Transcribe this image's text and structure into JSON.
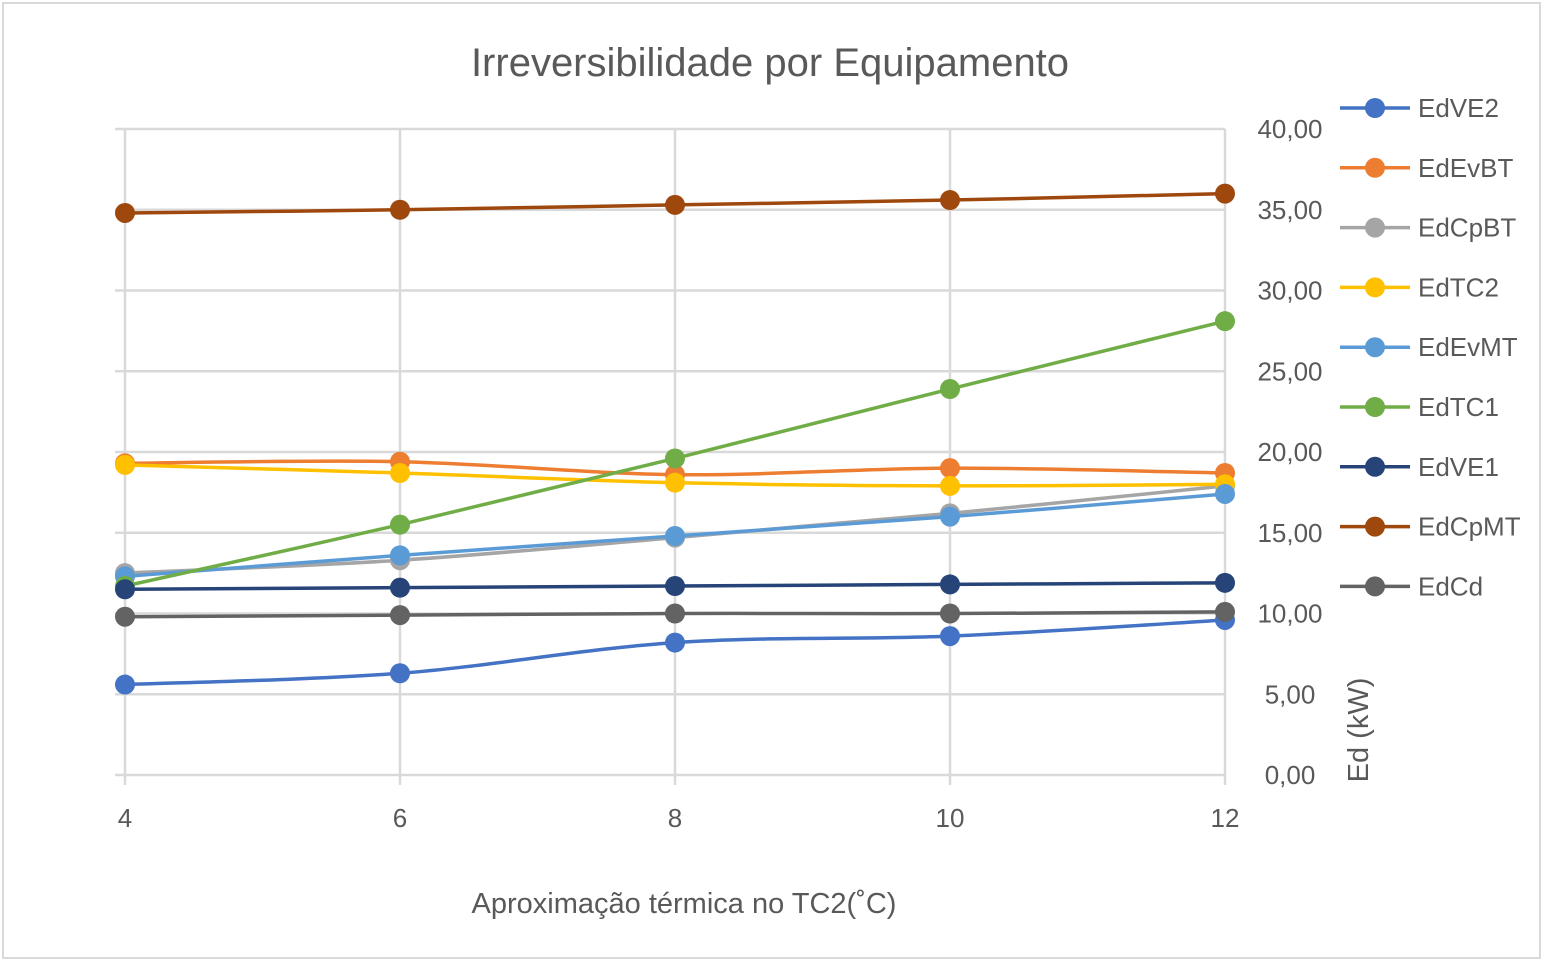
{
  "chart_data": {
    "type": "line",
    "title": "Irreversibilidade por Equipamento",
    "xlabel": "Aproximação térmica no TC2(˚C)",
    "ylabel": "Ed (kW)",
    "x": [
      4,
      6,
      8,
      10,
      12
    ],
    "x_tick_labels": [
      "4",
      "6",
      "8",
      "10",
      "12"
    ],
    "xlim": [
      4,
      12
    ],
    "ylim": [
      0,
      40
    ],
    "y_tick_labels": [
      "0,00",
      "5,00",
      "10,00",
      "15,00",
      "20,00",
      "25,00",
      "30,00",
      "35,00",
      "40,00"
    ],
    "y_axis_side": "right",
    "grid": true,
    "legend_position": "right",
    "series": [
      {
        "name": "EdVE2",
        "color": "#4472C4",
        "values": [
          5.6,
          6.3,
          8.2,
          8.6,
          9.6
        ]
      },
      {
        "name": "EdEvBT",
        "color": "#ED7D31",
        "values": [
          19.3,
          19.4,
          18.6,
          19.0,
          18.7
        ]
      },
      {
        "name": "EdCpBT",
        "color": "#A5A5A5",
        "values": [
          12.5,
          13.3,
          14.7,
          16.2,
          17.9
        ]
      },
      {
        "name": "EdTC2",
        "color": "#FFC000",
        "values": [
          19.2,
          18.7,
          18.1,
          17.9,
          18.0
        ]
      },
      {
        "name": "EdEvMT",
        "color": "#5B9BD5",
        "values": [
          12.3,
          13.6,
          14.8,
          16.0,
          17.4
        ]
      },
      {
        "name": "EdTC1",
        "color": "#70AD47",
        "values": [
          11.7,
          15.5,
          19.6,
          23.9,
          28.1
        ]
      },
      {
        "name": "EdVE1",
        "color": "#264478",
        "values": [
          11.5,
          11.6,
          11.7,
          11.8,
          11.9
        ]
      },
      {
        "name": "EdCpMT",
        "color": "#9E480E",
        "values": [
          34.8,
          35.0,
          35.3,
          35.6,
          36.0
        ]
      },
      {
        "name": "EdCd",
        "color": "#636363",
        "values": [
          9.8,
          9.9,
          10.0,
          10.0,
          10.1
        ]
      }
    ]
  }
}
